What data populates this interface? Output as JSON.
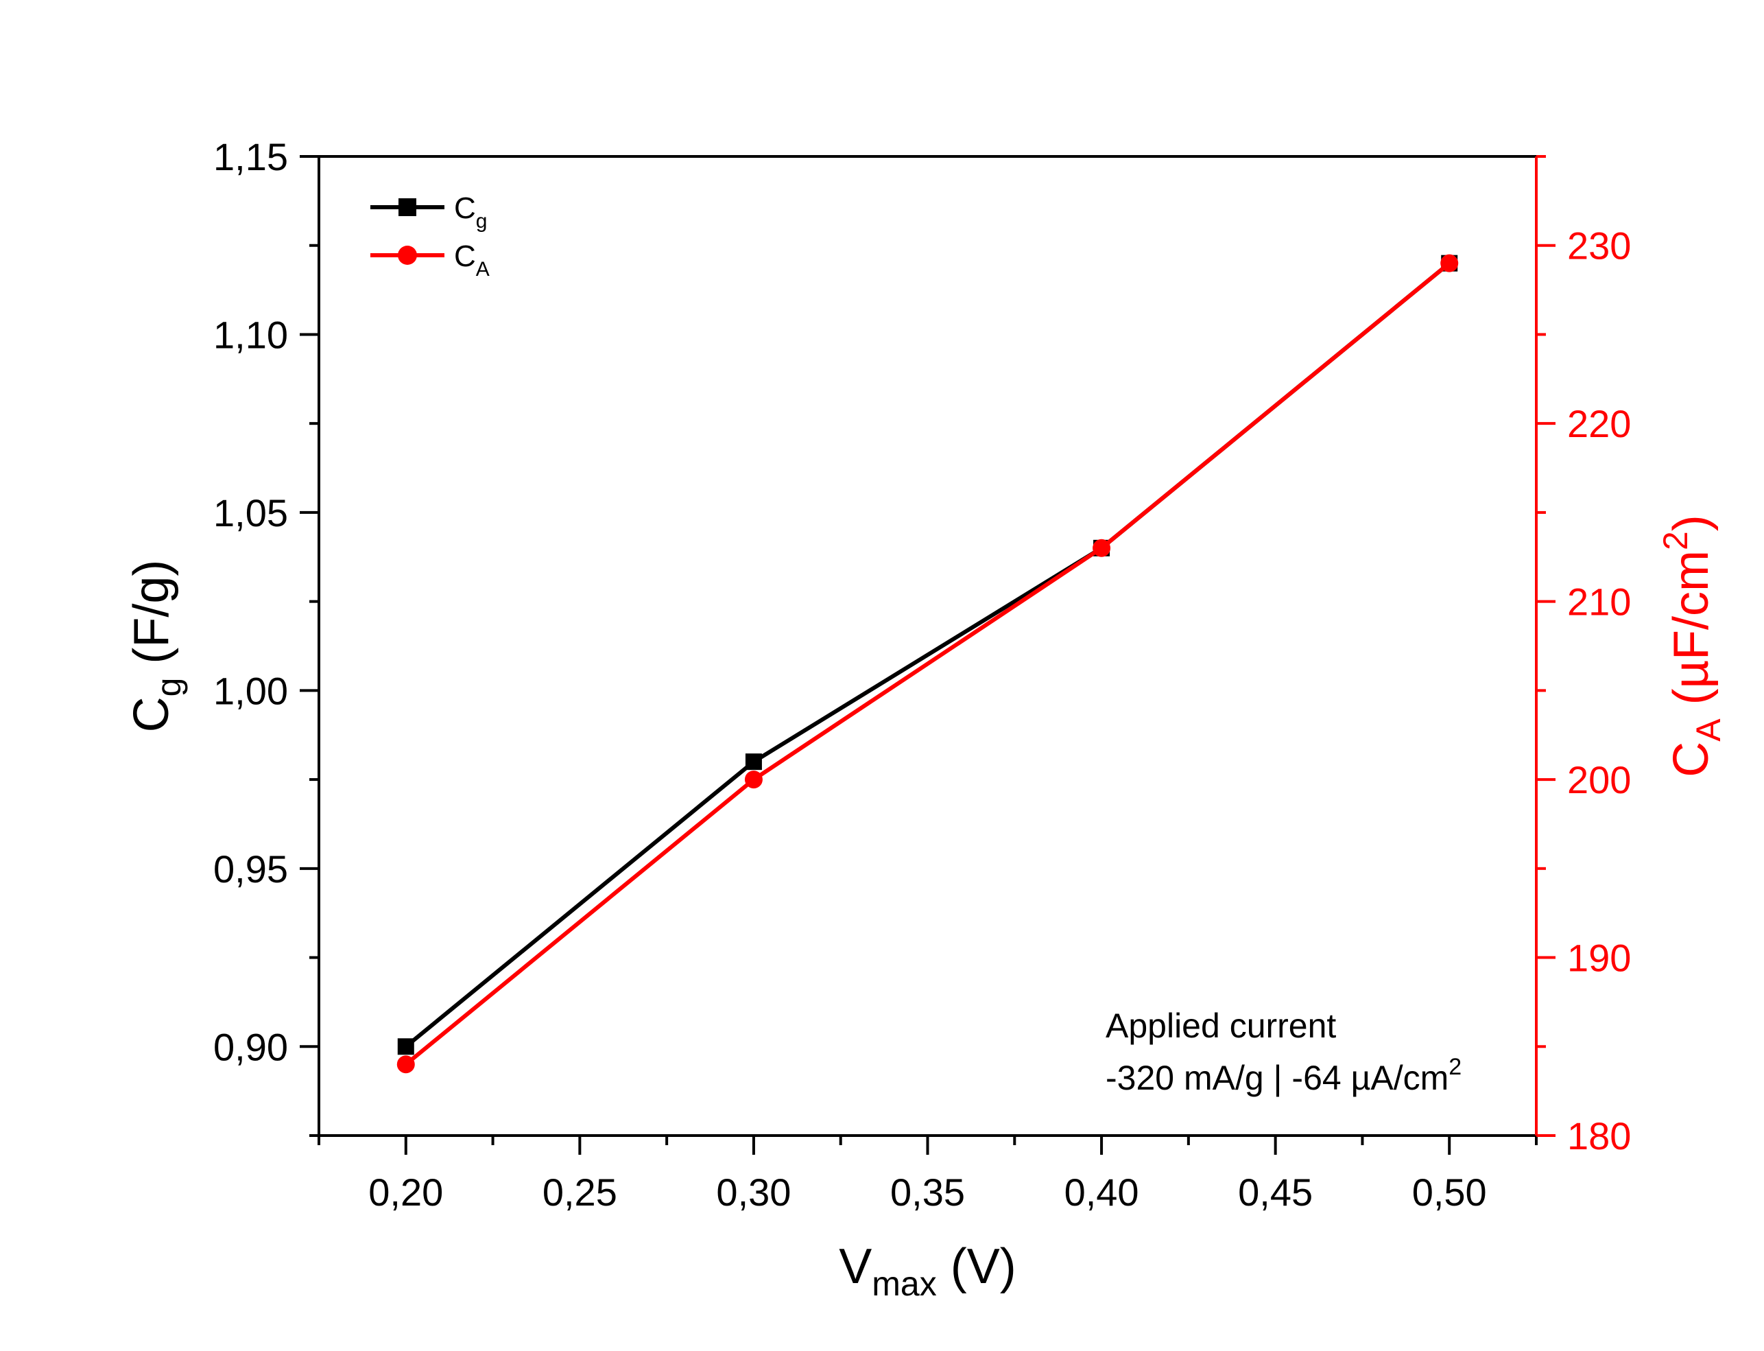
{
  "chart_data": {
    "type": "line",
    "x": [
      0.2,
      0.3,
      0.4,
      0.5
    ],
    "series": [
      {
        "name": "C",
        "name_sub": "g",
        "axis": "left",
        "color": "#000000",
        "marker": "square",
        "values": [
          0.9,
          0.98,
          1.04,
          1.12
        ]
      },
      {
        "name": "C",
        "name_sub": "A",
        "axis": "right",
        "color": "#ff0000",
        "marker": "circle",
        "values": [
          184,
          200,
          213,
          229
        ]
      }
    ],
    "xlim": [
      0.175,
      0.525
    ],
    "xticks": [
      "0,20",
      "0,25",
      "0,30",
      "0,35",
      "0,40",
      "0,45",
      "0,50"
    ],
    "xtick_values": [
      0.2,
      0.25,
      0.3,
      0.35,
      0.4,
      0.45,
      0.5
    ],
    "ylim_left": [
      0.875,
      1.15
    ],
    "yticks_left": [
      "0,90",
      "0,95",
      "1,00",
      "1,05",
      "1,10",
      "1,15"
    ],
    "ytick_values_left": [
      0.9,
      0.95,
      1.0,
      1.05,
      1.1,
      1.15
    ],
    "ylim_right": [
      180,
      235
    ],
    "yticks_right": [
      "180",
      "190",
      "200",
      "210",
      "220",
      "230"
    ],
    "ytick_values_right": [
      180,
      190,
      200,
      210,
      220,
      230
    ],
    "xlabel": {
      "main": "V",
      "sub": "max",
      "rest": " (V)"
    },
    "ylabel_left": {
      "main": "C",
      "sub": "g",
      "rest": " (F/g)"
    },
    "ylabel_right": {
      "main": "C",
      "sub": "A",
      "rest": " (µF/cm",
      "sup": "2",
      "tail": ")"
    },
    "legend_position": "top-left",
    "annotation": {
      "line1": "Applied current",
      "line2": "-320 mA/g | -64 µA/cm",
      "line2_sup": "2"
    },
    "colors": {
      "left_axis": "#000000",
      "right_axis": "#ff0000"
    },
    "grid": false
  }
}
